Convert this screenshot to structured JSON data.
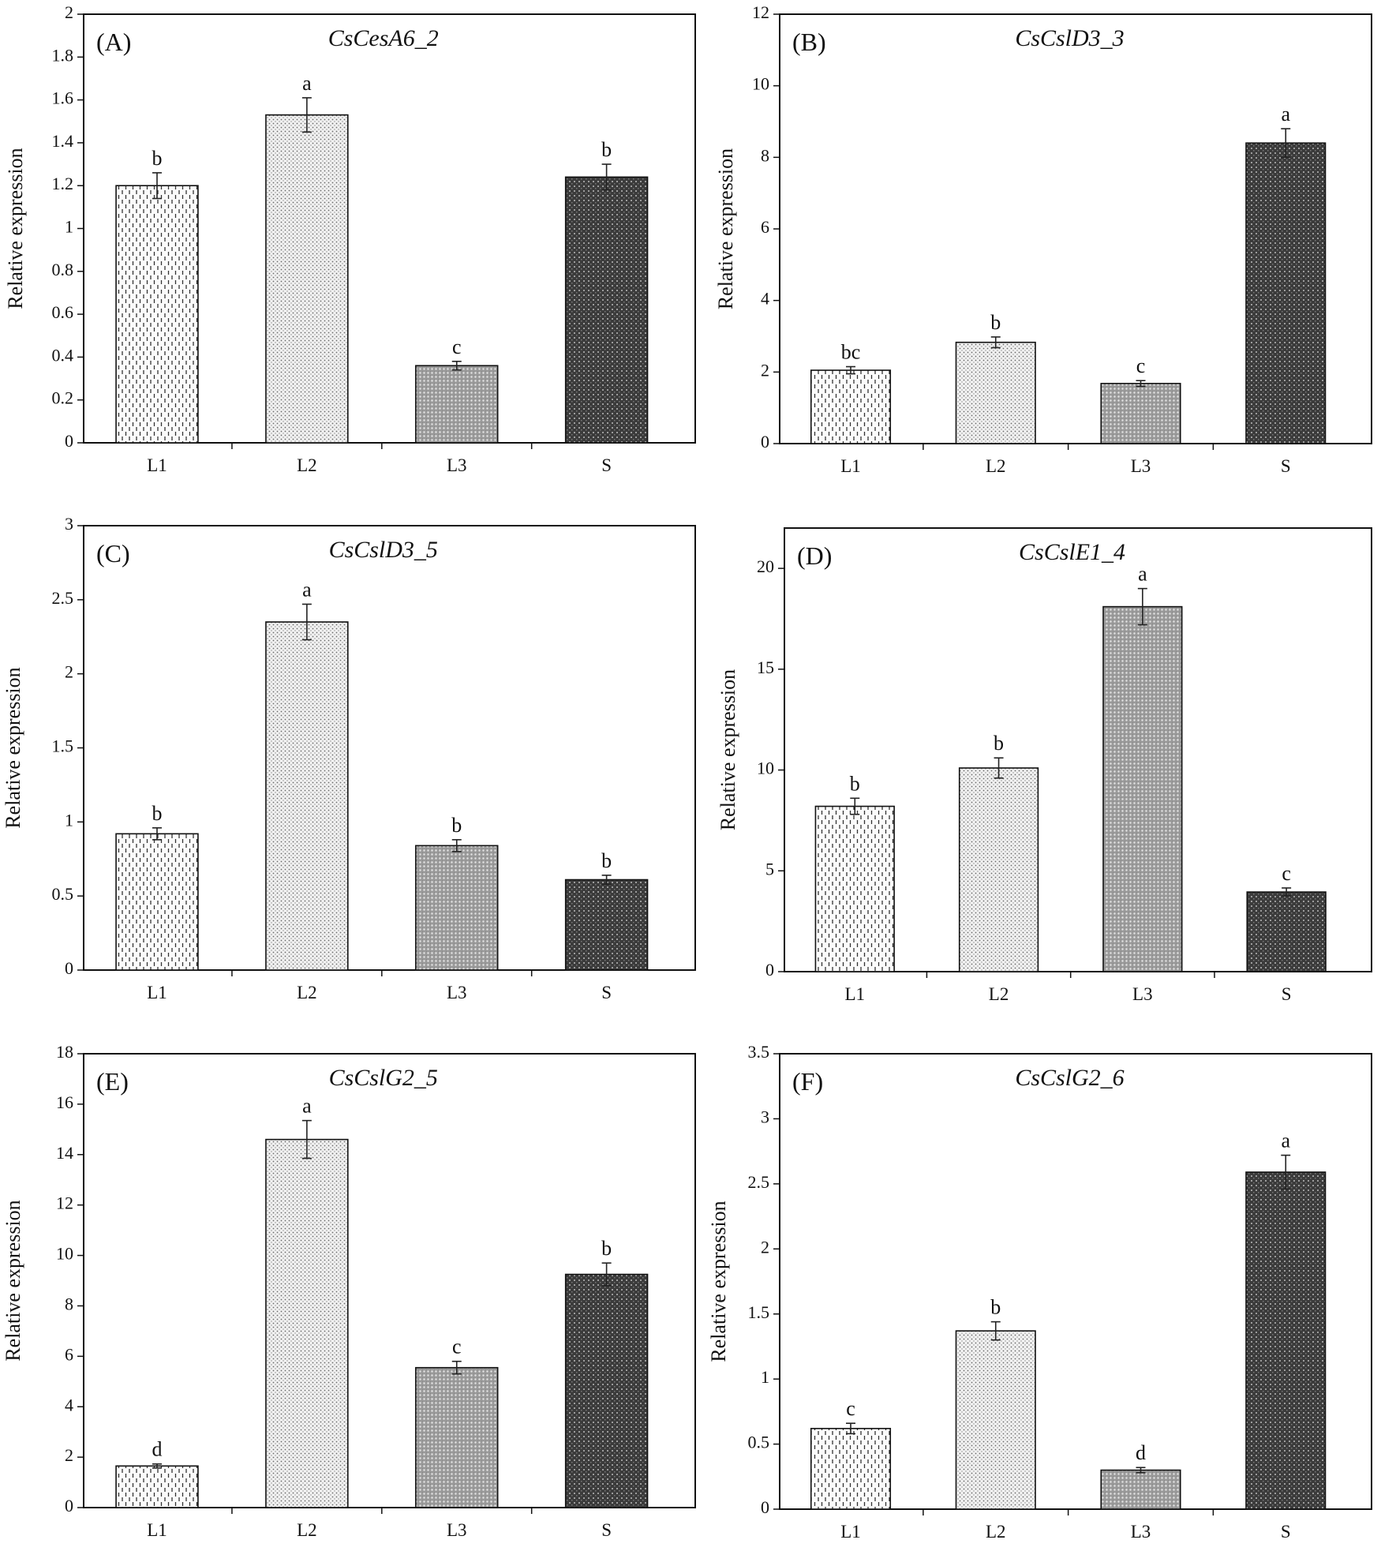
{
  "chart_data": [
    {
      "type": "bar",
      "panel": "(A)",
      "title": "CsCesA6_2",
      "categories": [
        "L1",
        "L2",
        "L3",
        "S"
      ],
      "values": [
        1.2,
        1.53,
        0.36,
        1.24
      ],
      "errors": [
        0.06,
        0.08,
        0.02,
        0.06
      ],
      "significance_letters": [
        "b",
        "a",
        "c",
        "b"
      ],
      "xlabel": "",
      "ylabel": "Relative expression",
      "ylim": [
        0,
        2
      ],
      "yticks": [
        0,
        0.2,
        0.4,
        0.6,
        0.8,
        1,
        1.2,
        1.4,
        1.6,
        1.8,
        2
      ],
      "grid": false
    },
    {
      "type": "bar",
      "panel": "(B)",
      "title": "CsCslD3_3",
      "categories": [
        "L1",
        "L2",
        "L3",
        "S"
      ],
      "values": [
        2.05,
        2.83,
        1.68,
        8.4
      ],
      "errors": [
        0.1,
        0.15,
        0.08,
        0.4
      ],
      "significance_letters": [
        "bc",
        "b",
        "c",
        "a"
      ],
      "xlabel": "",
      "ylabel": "Relative expression",
      "ylim": [
        0,
        12
      ],
      "yticks": [
        0,
        2,
        4,
        6,
        8,
        10,
        12
      ],
      "grid": false
    },
    {
      "type": "bar",
      "panel": "(C)",
      "title": "CsCslD3_5",
      "categories": [
        "L1",
        "L2",
        "L3",
        "S"
      ],
      "values": [
        0.92,
        2.35,
        0.84,
        0.61
      ],
      "errors": [
        0.04,
        0.12,
        0.04,
        0.03
      ],
      "significance_letters": [
        "b",
        "a",
        "b",
        "b"
      ],
      "xlabel": "",
      "ylabel": "Relative expression",
      "ylim": [
        0,
        3
      ],
      "yticks": [
        0,
        0.5,
        1,
        1.5,
        2,
        2.5,
        3
      ],
      "grid": false
    },
    {
      "type": "bar",
      "panel": "(D)",
      "title": "CsCslE1_4",
      "categories": [
        "L1",
        "L2",
        "L3",
        "S"
      ],
      "values": [
        8.2,
        10.1,
        18.1,
        3.95
      ],
      "errors": [
        0.4,
        0.5,
        0.9,
        0.2
      ],
      "significance_letters": [
        "b",
        "b",
        "a",
        "c"
      ],
      "xlabel": "",
      "ylabel": "Relative expression",
      "ylim": [
        0,
        22
      ],
      "yticks": [
        0,
        5,
        10,
        15,
        20
      ],
      "grid": false
    },
    {
      "type": "bar",
      "panel": "(E)",
      "title": "CsCslG2_5",
      "categories": [
        "L1",
        "L2",
        "L3",
        "S"
      ],
      "values": [
        1.65,
        14.6,
        5.55,
        9.25
      ],
      "errors": [
        0.08,
        0.75,
        0.25,
        0.45
      ],
      "significance_letters": [
        "d",
        "a",
        "c",
        "b"
      ],
      "xlabel": "",
      "ylabel": "Relative expression",
      "ylim": [
        0,
        18
      ],
      "yticks": [
        0,
        2,
        4,
        6,
        8,
        10,
        12,
        14,
        16,
        18
      ],
      "grid": false
    },
    {
      "type": "bar",
      "panel": "(F)",
      "title": "CsCslG2_6",
      "categories": [
        "L1",
        "L2",
        "L3",
        "S"
      ],
      "values": [
        0.62,
        1.37,
        0.3,
        2.59
      ],
      "errors": [
        0.04,
        0.07,
        0.02,
        0.13
      ],
      "significance_letters": [
        "c",
        "b",
        "d",
        "a"
      ],
      "xlabel": "",
      "ylabel": "Relative expression",
      "ylim": [
        0,
        3.5
      ],
      "yticks": [
        0,
        0.5,
        1,
        1.5,
        2,
        2.5,
        3,
        3.5
      ],
      "grid": false
    }
  ]
}
